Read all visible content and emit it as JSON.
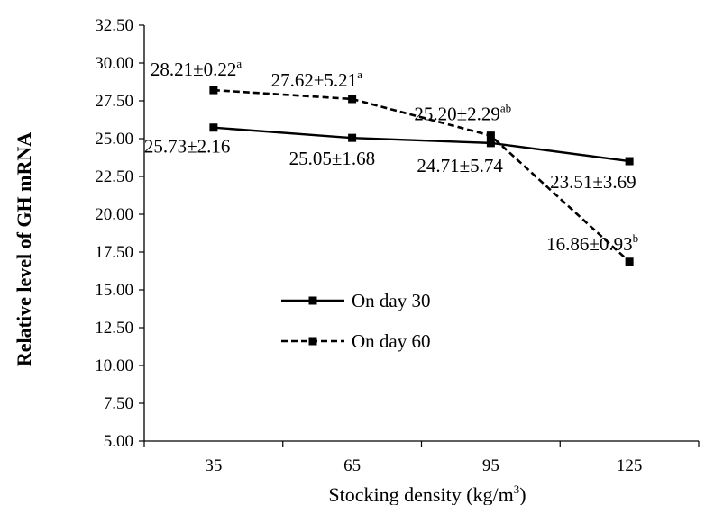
{
  "chart_data": {
    "type": "line",
    "x": [
      35,
      65,
      95,
      125
    ],
    "categories": [
      "35",
      "65",
      "95",
      "125"
    ],
    "xlabel_main": "Stocking density (kg/m",
    "xlabel_sup": "3",
    "xlabel_end": ")",
    "ylabel": "Relative level of GH mRNA",
    "ylim": [
      5.0,
      32.5
    ],
    "yticks": [
      "5.00",
      "7.50",
      "10.00",
      "12.50",
      "15.00",
      "17.50",
      "20.00",
      "22.50",
      "25.00",
      "27.50",
      "30.00",
      "32.50"
    ],
    "grid": false,
    "legend_position": "center-left",
    "series": [
      {
        "name": "On day 30",
        "line_style": "solid",
        "color": "#000000",
        "values": [
          25.73,
          25.05,
          24.71,
          23.51
        ],
        "labels": [
          {
            "text": "25.73±2.16",
            "sup": ""
          },
          {
            "text": "25.05±1.68",
            "sup": ""
          },
          {
            "text": "24.71±5.74",
            "sup": ""
          },
          {
            "text": "23.51±3.69",
            "sup": ""
          }
        ]
      },
      {
        "name": "On day 60",
        "line_style": "dashed",
        "color": "#000000",
        "values": [
          28.21,
          27.62,
          25.2,
          16.86
        ],
        "labels": [
          {
            "text": "28.21±0.22",
            "sup": "a"
          },
          {
            "text": "27.62±5.21",
            "sup": "a"
          },
          {
            "text": "25.20±2.29",
            "sup": "ab"
          },
          {
            "text": "16.86±0.93",
            "sup": "b"
          }
        ]
      }
    ]
  }
}
